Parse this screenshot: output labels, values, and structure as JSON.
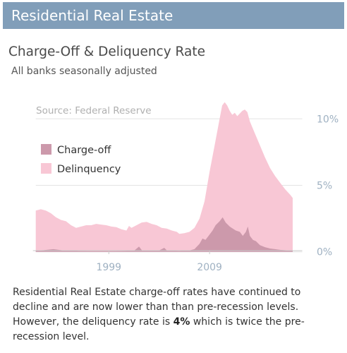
{
  "banner": {
    "title": "Residential Real Estate"
  },
  "header": {
    "title": "Charge-Off & Deliquency Rate",
    "subtitle": "All banks seasonally adjusted"
  },
  "caption": {
    "before": "Residential Real Estate charge-off rates have continued to decline and are now lower than than pre-recession levels. However, the deliquency rate is ",
    "highlight": "4%",
    "after": " which is twice the pre-recession level."
  },
  "colors": {
    "delinquency": "#f8c7d5",
    "charge_off": "#cc99ab",
    "axis": "#9fb1c2",
    "grid": "#e3e3e3"
  },
  "chart_data": {
    "type": "area",
    "title": "Charge-Off & Deliquency Rate",
    "subtitle": "All banks seasonally adjusted",
    "source": "Source: Federal Reserve",
    "x_tick_labels": [
      "1999",
      "2009"
    ],
    "x_ticks": [
      1999,
      2009
    ],
    "y_tick_labels": [
      "0%",
      "5%",
      "10%"
    ],
    "y_ticks": [
      0,
      5,
      10
    ],
    "xlim": [
      1991,
      2019
    ],
    "ylim": [
      -0.6,
      11.5
    ],
    "grid": true,
    "legend_position": "top-left",
    "series": [
      {
        "name": "Delinquency",
        "points": [
          [
            1991.75,
            3.1
          ],
          [
            1992.25,
            3.2
          ],
          [
            1992.75,
            3.1
          ],
          [
            1993.25,
            2.9
          ],
          [
            1993.75,
            2.6
          ],
          [
            1994.25,
            2.4
          ],
          [
            1994.75,
            2.3
          ],
          [
            1995.25,
            2.0
          ],
          [
            1995.75,
            1.8
          ],
          [
            1996.25,
            1.9
          ],
          [
            1996.75,
            2.0
          ],
          [
            1997.25,
            2.0
          ],
          [
            1997.75,
            2.1
          ],
          [
            1998.25,
            2.05
          ],
          [
            1998.75,
            2.0
          ],
          [
            1999.25,
            1.9
          ],
          [
            1999.75,
            1.85
          ],
          [
            2000.25,
            1.7
          ],
          [
            2000.75,
            1.6
          ],
          [
            2001.0,
            1.95
          ],
          [
            2001.25,
            1.8
          ],
          [
            2001.75,
            2.0
          ],
          [
            2002.25,
            2.2
          ],
          [
            2002.75,
            2.25
          ],
          [
            2003.25,
            2.1
          ],
          [
            2003.75,
            2.0
          ],
          [
            2004.25,
            1.8
          ],
          [
            2004.75,
            1.75
          ],
          [
            2005.25,
            1.6
          ],
          [
            2005.75,
            1.5
          ],
          [
            2006.0,
            1.35
          ],
          [
            2006.5,
            1.4
          ],
          [
            2007.0,
            1.5
          ],
          [
            2007.5,
            1.8
          ],
          [
            2008.0,
            2.5
          ],
          [
            2008.5,
            3.8
          ],
          [
            2009.0,
            6.0
          ],
          [
            2009.5,
            8.0
          ],
          [
            2010.0,
            10.0
          ],
          [
            2010.25,
            11.0
          ],
          [
            2010.5,
            11.25
          ],
          [
            2010.75,
            11.0
          ],
          [
            2011.0,
            10.6
          ],
          [
            2011.25,
            10.3
          ],
          [
            2011.5,
            10.45
          ],
          [
            2011.75,
            10.2
          ],
          [
            2012.0,
            10.4
          ],
          [
            2012.25,
            10.6
          ],
          [
            2012.5,
            10.7
          ],
          [
            2012.75,
            10.5
          ],
          [
            2013.0,
            9.8
          ],
          [
            2013.5,
            8.9
          ],
          [
            2014.0,
            8.0
          ],
          [
            2014.5,
            7.1
          ],
          [
            2015.0,
            6.3
          ],
          [
            2015.5,
            5.7
          ],
          [
            2016.0,
            5.2
          ],
          [
            2016.5,
            4.7
          ],
          [
            2017.0,
            4.3
          ],
          [
            2017.25,
            4.05
          ]
        ]
      },
      {
        "name": "Charge-off",
        "points": [
          [
            1991.75,
            0.1
          ],
          [
            1992.5,
            0.12
          ],
          [
            1993.5,
            0.2
          ],
          [
            1994.5,
            0.1
          ],
          [
            1996.0,
            0.06
          ],
          [
            1998.0,
            0.05
          ],
          [
            1999.5,
            0.05
          ],
          [
            2000.5,
            0.06
          ],
          [
            2001.5,
            0.08
          ],
          [
            2002.0,
            0.4
          ],
          [
            2002.3,
            0.1
          ],
          [
            2003.5,
            0.08
          ],
          [
            2004.0,
            0.1
          ],
          [
            2004.5,
            0.3
          ],
          [
            2004.8,
            0.08
          ],
          [
            2006.0,
            0.06
          ],
          [
            2007.0,
            0.1
          ],
          [
            2007.5,
            0.2
          ],
          [
            2008.0,
            0.6
          ],
          [
            2008.3,
            1.0
          ],
          [
            2008.6,
            0.9
          ],
          [
            2009.0,
            1.3
          ],
          [
            2009.3,
            1.6
          ],
          [
            2009.6,
            2.0
          ],
          [
            2010.0,
            2.3
          ],
          [
            2010.3,
            2.6
          ],
          [
            2010.6,
            2.2
          ],
          [
            2011.0,
            1.9
          ],
          [
            2011.3,
            1.75
          ],
          [
            2011.6,
            1.6
          ],
          [
            2012.0,
            1.5
          ],
          [
            2012.3,
            1.2
          ],
          [
            2012.6,
            1.5
          ],
          [
            2012.8,
            1.9
          ],
          [
            2013.0,
            1.2
          ],
          [
            2013.3,
            0.9
          ],
          [
            2013.6,
            0.8
          ],
          [
            2014.0,
            0.5
          ],
          [
            2014.5,
            0.35
          ],
          [
            2015.0,
            0.25
          ],
          [
            2015.5,
            0.2
          ],
          [
            2016.0,
            0.15
          ],
          [
            2016.5,
            0.12
          ],
          [
            2017.0,
            0.1
          ],
          [
            2017.25,
            0.08
          ]
        ]
      }
    ]
  }
}
